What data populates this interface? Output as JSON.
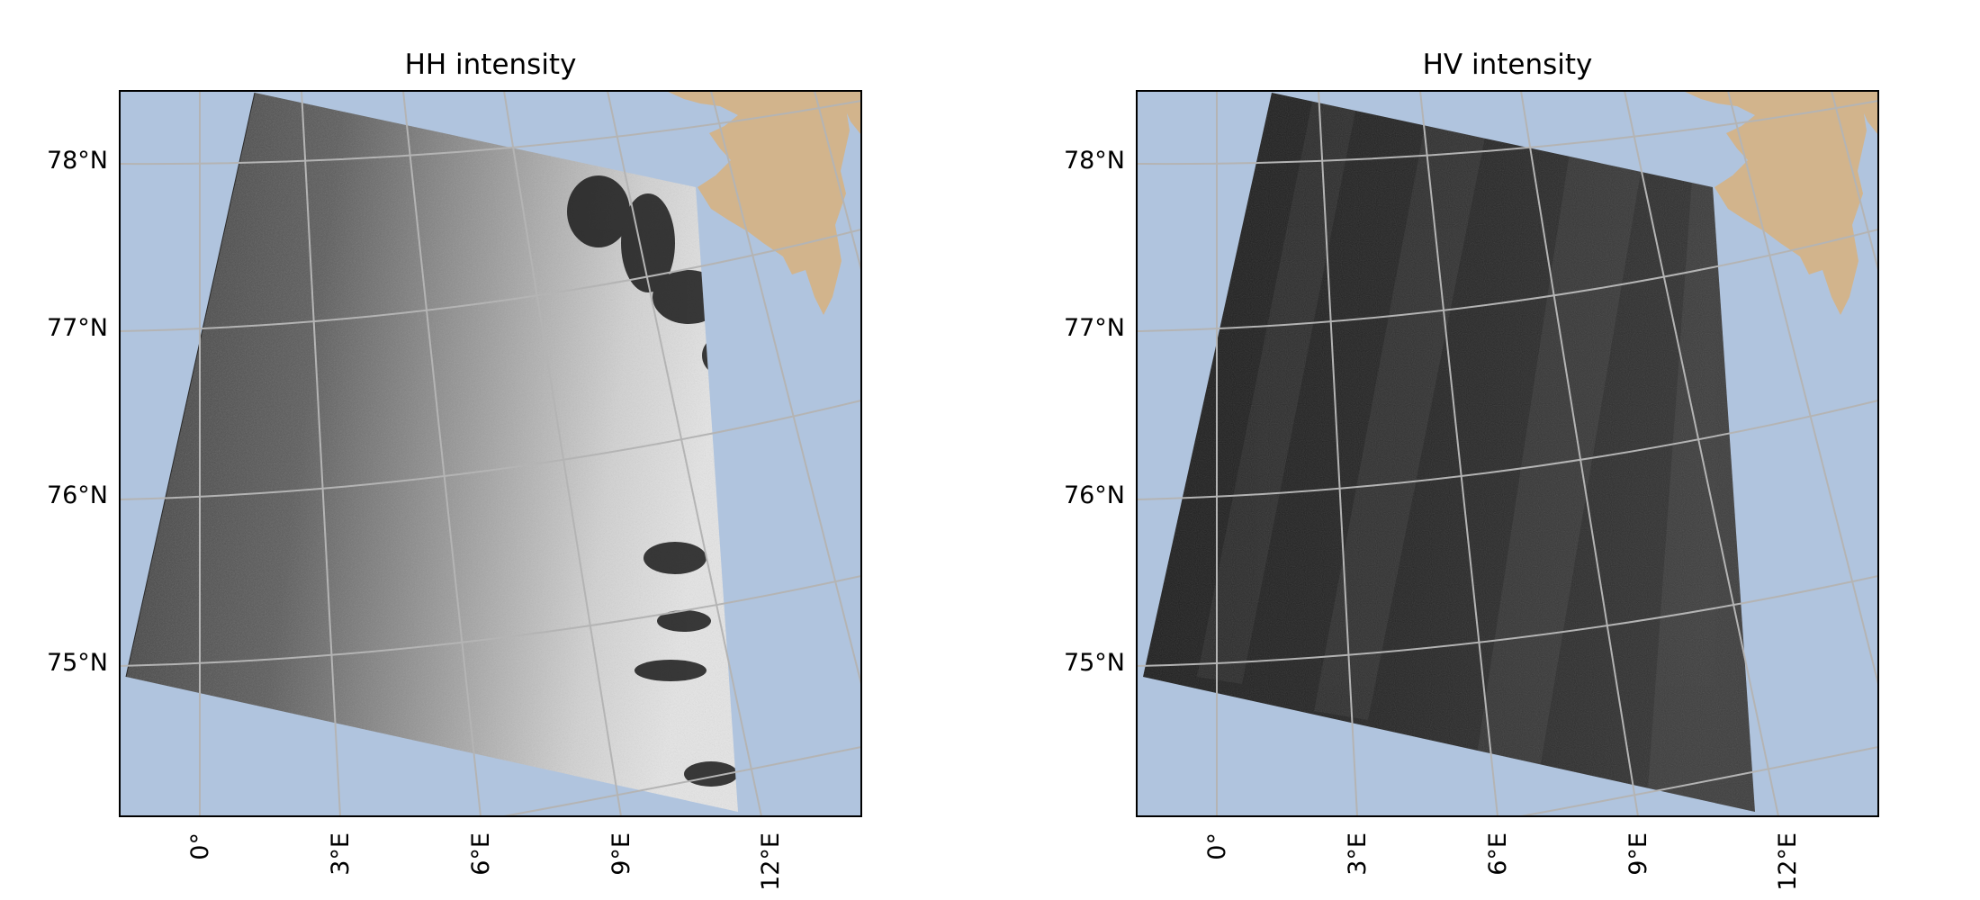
{
  "figure": {
    "panels": [
      {
        "id": "hh",
        "title": "HH intensity",
        "lat_labels": [
          "78°N",
          "77°N",
          "76°N",
          "75°N"
        ],
        "lon_labels": [
          "0°",
          "3°E",
          "6°E",
          "9°E",
          "12°E"
        ]
      },
      {
        "id": "hv",
        "title": "HV intensity",
        "lat_labels": [
          "78°N",
          "77°N",
          "76°N",
          "75°N"
        ],
        "lon_labels": [
          "0°",
          "3°E",
          "6°E",
          "9°E",
          "12°E"
        ]
      }
    ],
    "colors": {
      "ocean": "#b0c4de",
      "land": "#d2b48c",
      "gridlines": "#b4b4b4",
      "frame": "#000000"
    },
    "imagery": "grayscale SAR intensity swath"
  }
}
